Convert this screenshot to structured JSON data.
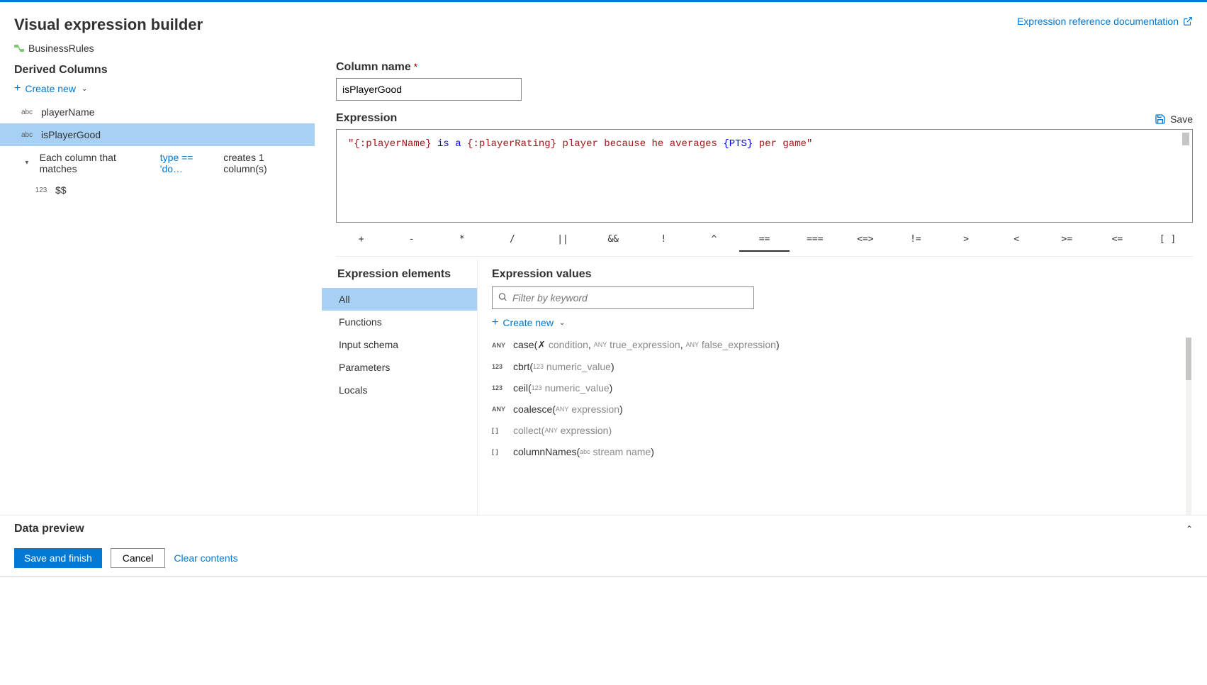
{
  "header": {
    "title": "Visual expression builder",
    "doc_link_label": "Expression reference documentation",
    "transform_name": "BusinessRules"
  },
  "left": {
    "section_title": "Derived Columns",
    "create_new_label": "Create new",
    "columns": [
      {
        "type_label": "abc",
        "name": "playerName",
        "selected": false
      },
      {
        "type_label": "abc",
        "name": "isPlayerGood",
        "selected": true
      }
    ],
    "pattern": {
      "prefix": "Each column that matches",
      "expr": "type == 'do…",
      "suffix": "creates 1 column(s)",
      "sub_type_label": "123",
      "sub_name": "$$"
    }
  },
  "right": {
    "col_label": "Column name",
    "col_value": "isPlayerGood",
    "expr_label": "Expression",
    "save_label": "Save",
    "expr_tokens": [
      {
        "cls": "tok-str",
        "t": "\"{:playerName}"
      },
      {
        "cls": "tok-kw",
        "t": " is a "
      },
      {
        "cls": "tok-str",
        "t": "{:playerRating}"
      },
      {
        "cls": "tok-str",
        "t": " player because he averages "
      },
      {
        "cls": "tok-kw",
        "t": "{PTS}"
      },
      {
        "cls": "tok-str",
        "t": " per game\""
      }
    ],
    "operators": [
      "+",
      "-",
      "*",
      "/",
      "||",
      "&&",
      "!",
      "^",
      "==",
      "===",
      "<=>",
      "!=",
      ">",
      "<",
      ">=",
      "<=",
      "[ ]"
    ],
    "active_op": "=="
  },
  "elements": {
    "title": "Expression elements",
    "items": [
      {
        "label": "All",
        "selected": true
      },
      {
        "label": "Functions",
        "selected": false
      },
      {
        "label": "Input schema",
        "selected": false
      },
      {
        "label": "Parameters",
        "selected": false
      },
      {
        "label": "Locals",
        "selected": false
      }
    ]
  },
  "values": {
    "title": "Expression values",
    "filter_placeholder": "Filter by keyword",
    "create_new_label": "Create new",
    "functions": [
      {
        "ret": "ANY",
        "name": "case",
        "args_html": "(✗ <span class='fn-arg'>condition</span>, <span class='fn-argtype'>ANY</span> <span class='fn-arg'>true_expression</span>, <span class='fn-argtype'>ANY</span> <span class='fn-arg'>false_expression</span>)"
      },
      {
        "ret": "123",
        "name": "cbrt",
        "args_html": "(<span class='fn-argtype'>123</span> <span class='fn-arg'>numeric_value</span>)"
      },
      {
        "ret": "123",
        "name": "ceil",
        "args_html": "(<span class='fn-argtype'>123</span> <span class='fn-arg'>numeric_value</span>)"
      },
      {
        "ret": "ANY",
        "name": "coalesce",
        "args_html": "(<span class='fn-argtype'>ANY</span> <span class='fn-arg'>expression</span>)"
      },
      {
        "ret": "[ ]",
        "name": "collect",
        "args_html": "(<span class='fn-argtype'>ANY</span> <span class='fn-arg'>expression</span>)",
        "muted": true
      },
      {
        "ret": "[ ]",
        "name": "columnNames",
        "args_html": "(<span class='fn-argtype'>abc</span> <span class='fn-arg'>stream name</span>)"
      }
    ]
  },
  "footer": {
    "data_preview_label": "Data preview",
    "save_finish": "Save and finish",
    "cancel": "Cancel",
    "clear": "Clear contents"
  },
  "colors": {
    "accent": "#0078d4",
    "selection": "#a6d1f5",
    "border": "#8a8886",
    "muted": "#605e5c"
  }
}
